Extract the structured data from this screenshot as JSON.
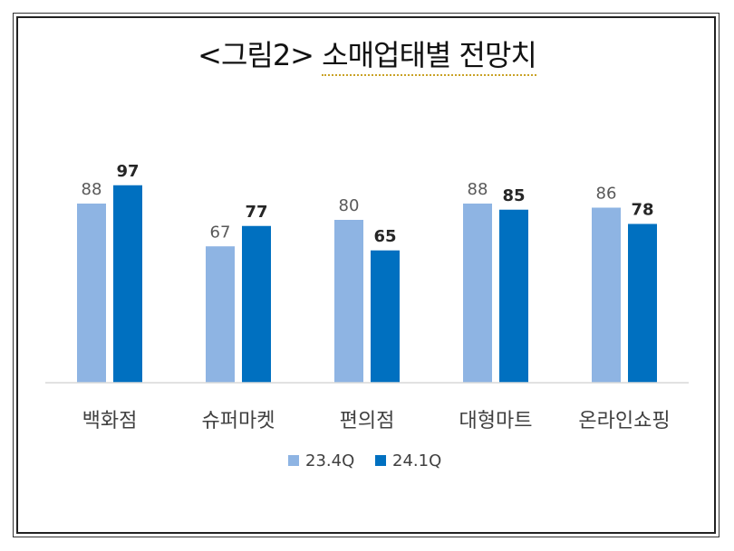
{
  "title": {
    "main": "<그림2>",
    "sub": "소매업태별 전망치"
  },
  "chart_data": {
    "type": "bar",
    "title": "<그림2> 소매업태별 전망치",
    "categories": [
      "백화점",
      "슈퍼마켓",
      "편의점",
      "대형마트",
      "온라인쇼핑"
    ],
    "series": [
      {
        "name": "23.4Q",
        "values": [
          88,
          67,
          80,
          88,
          86
        ],
        "color": "#8eb4e3"
      },
      {
        "name": "24.1Q",
        "values": [
          97,
          77,
          65,
          85,
          78
        ],
        "color": "#0070c0"
      }
    ],
    "ylim": [
      0,
      110
    ],
    "xlabel": "",
    "ylabel": "",
    "legend": "bottom"
  }
}
